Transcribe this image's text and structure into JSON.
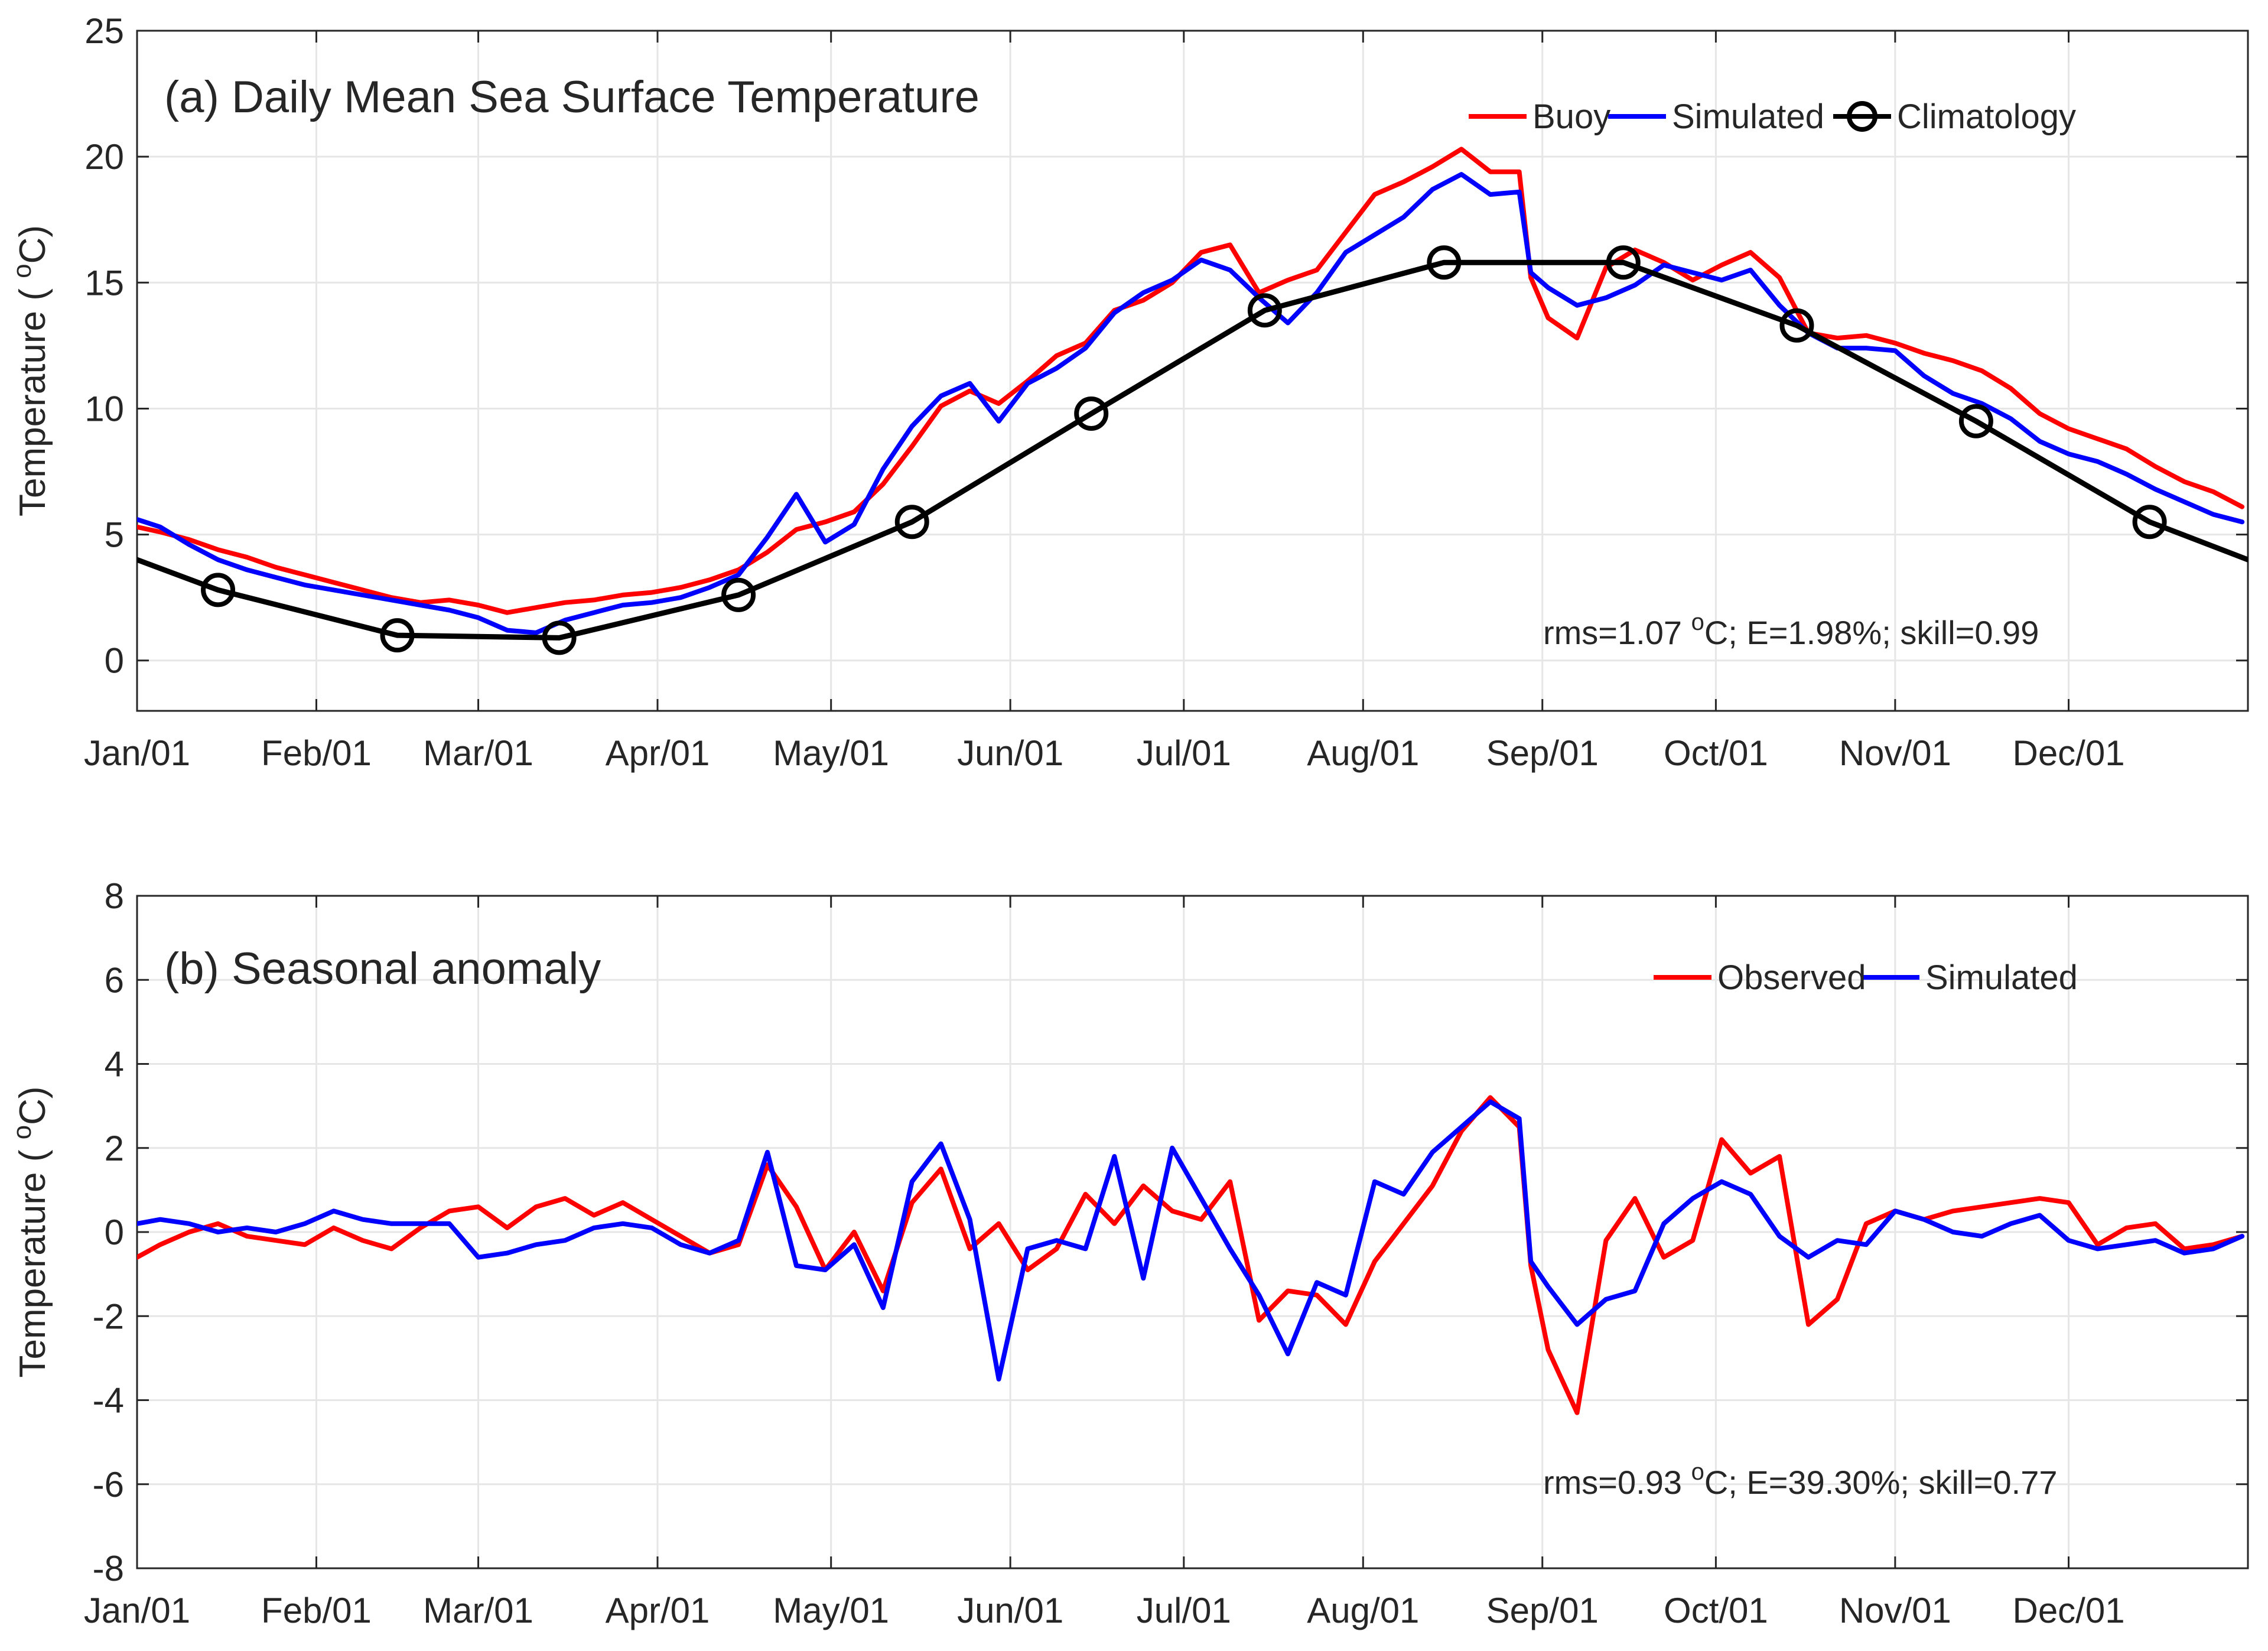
{
  "chart_data": [
    {
      "type": "line",
      "title": "(a) Daily Mean Sea Surface Temperature",
      "ylabel": "Temperature ( °C)",
      "ylabel_parts": {
        "prefix": "Temperature ( ",
        "sup": "o",
        "suffix": "C)"
      },
      "xlabel": "",
      "ylim": [
        -2,
        25
      ],
      "yticks": [
        0,
        5,
        10,
        15,
        20,
        25
      ],
      "xlim": [
        1,
        366
      ],
      "month_ticks": [
        {
          "label": "Jan/01",
          "day": 1
        },
        {
          "label": "Feb/01",
          "day": 32
        },
        {
          "label": "Mar/01",
          "day": 60
        },
        {
          "label": "Apr/01",
          "day": 91
        },
        {
          "label": "May/01",
          "day": 121
        },
        {
          "label": "Jun/01",
          "day": 152
        },
        {
          "label": "Jul/01",
          "day": 182
        },
        {
          "label": "Aug/01",
          "day": 213
        },
        {
          "label": "Sep/01",
          "day": 244
        },
        {
          "label": "Oct/01",
          "day": 274
        },
        {
          "label": "Nov/01",
          "day": 305
        },
        {
          "label": "Dec/01",
          "day": 335
        }
      ],
      "legend_position": "top-right",
      "stats": {
        "prefix": "rms=1.07 ",
        "sup": "o",
        "suffix": "C; E=1.98%; skill=0.99"
      },
      "series": [
        {
          "name": "Buoy",
          "color": "#ff0000",
          "marker": "none",
          "x": [
            1,
            5,
            10,
            15,
            20,
            25,
            30,
            35,
            40,
            45,
            50,
            55,
            60,
            65,
            70,
            75,
            80,
            85,
            90,
            95,
            100,
            105,
            110,
            115,
            120,
            125,
            130,
            135,
            140,
            145,
            150,
            155,
            160,
            165,
            170,
            175,
            180,
            185,
            190,
            195,
            200,
            205,
            210,
            215,
            220,
            225,
            230,
            235,
            240,
            242,
            245,
            250,
            255,
            260,
            265,
            270,
            275,
            280,
            285,
            290,
            295,
            300,
            305,
            310,
            315,
            320,
            325,
            330,
            335,
            340,
            345,
            350,
            355,
            360,
            365
          ],
          "y": [
            5.3,
            5.1,
            4.8,
            4.4,
            4.1,
            3.7,
            3.4,
            3.1,
            2.8,
            2.5,
            2.3,
            2.4,
            2.2,
            1.9,
            2.1,
            2.3,
            2.4,
            2.6,
            2.7,
            2.9,
            3.2,
            3.6,
            4.3,
            5.2,
            5.5,
            5.9,
            7.0,
            8.5,
            10.1,
            10.7,
            10.2,
            11.1,
            12.1,
            12.6,
            13.9,
            14.3,
            15.0,
            16.2,
            16.5,
            14.6,
            15.1,
            15.5,
            17.0,
            18.5,
            19.0,
            19.6,
            20.3,
            19.4,
            19.4,
            15.2,
            13.6,
            12.8,
            15.6,
            16.3,
            15.8,
            15.1,
            15.7,
            16.2,
            15.2,
            13.0,
            12.8,
            12.9,
            12.6,
            12.2,
            11.9,
            11.5,
            10.8,
            9.8,
            9.2,
            8.8,
            8.4,
            7.7,
            7.1,
            6.7,
            6.1
          ]
        },
        {
          "name": "Simulated",
          "color": "#0000ff",
          "marker": "none",
          "x": [
            1,
            5,
            10,
            15,
            20,
            25,
            30,
            35,
            40,
            45,
            50,
            55,
            60,
            65,
            70,
            75,
            80,
            85,
            90,
            95,
            100,
            105,
            110,
            115,
            120,
            125,
            130,
            135,
            140,
            145,
            150,
            155,
            160,
            165,
            170,
            175,
            180,
            185,
            190,
            195,
            200,
            205,
            210,
            215,
            220,
            225,
            230,
            235,
            240,
            242,
            245,
            250,
            255,
            260,
            265,
            270,
            275,
            280,
            285,
            290,
            295,
            300,
            305,
            310,
            315,
            320,
            325,
            330,
            335,
            340,
            345,
            350,
            355,
            360,
            365
          ],
          "y": [
            5.6,
            5.3,
            4.6,
            4.0,
            3.6,
            3.3,
            3.0,
            2.8,
            2.6,
            2.4,
            2.2,
            2.0,
            1.7,
            1.2,
            1.1,
            1.6,
            1.9,
            2.2,
            2.3,
            2.5,
            2.9,
            3.4,
            4.9,
            6.6,
            4.7,
            5.4,
            7.6,
            9.3,
            10.5,
            11.0,
            9.5,
            11.0,
            11.6,
            12.4,
            13.8,
            14.6,
            15.1,
            15.9,
            15.5,
            14.4,
            13.4,
            14.6,
            16.2,
            16.9,
            17.6,
            18.7,
            19.3,
            18.5,
            18.6,
            15.4,
            14.8,
            14.1,
            14.4,
            14.9,
            15.7,
            15.4,
            15.1,
            15.5,
            14.1,
            13.0,
            12.4,
            12.4,
            12.3,
            11.3,
            10.6,
            10.2,
            9.6,
            8.7,
            8.2,
            7.9,
            7.4,
            6.8,
            6.3,
            5.8,
            5.5
          ]
        },
        {
          "name": "Climatology",
          "color": "#000000",
          "marker": "circle",
          "x": [
            1,
            15,
            46,
            74,
            105,
            135,
            166,
            196,
            227,
            258,
            288,
            319,
            349,
            366
          ],
          "y": [
            4.0,
            2.8,
            1.0,
            0.9,
            2.6,
            5.5,
            9.8,
            13.9,
            15.8,
            15.8,
            13.3,
            9.5,
            5.5,
            4.0
          ]
        }
      ]
    },
    {
      "type": "line",
      "title": "(b) Seasonal anomaly",
      "ylabel": "Temperature ( °C)",
      "ylabel_parts": {
        "prefix": "Temperature ( ",
        "sup": "o",
        "suffix": "C)"
      },
      "xlabel": "",
      "ylim": [
        -8,
        8
      ],
      "yticks": [
        -8,
        -6,
        -4,
        -2,
        0,
        2,
        4,
        6,
        8
      ],
      "xlim": [
        1,
        366
      ],
      "month_ticks": [
        {
          "label": "Jan/01",
          "day": 1
        },
        {
          "label": "Feb/01",
          "day": 32
        },
        {
          "label": "Mar/01",
          "day": 60
        },
        {
          "label": "Apr/01",
          "day": 91
        },
        {
          "label": "May/01",
          "day": 121
        },
        {
          "label": "Jun/01",
          "day": 152
        },
        {
          "label": "Jul/01",
          "day": 182
        },
        {
          "label": "Aug/01",
          "day": 213
        },
        {
          "label": "Sep/01",
          "day": 244
        },
        {
          "label": "Oct/01",
          "day": 274
        },
        {
          "label": "Nov/01",
          "day": 305
        },
        {
          "label": "Dec/01",
          "day": 335
        }
      ],
      "legend_position": "top-right",
      "stats": {
        "prefix": "rms=0.93 ",
        "sup": "o",
        "suffix": "C; E=39.30%; skill=0.77"
      },
      "series": [
        {
          "name": "Observed",
          "color": "#ff0000",
          "marker": "none",
          "x": [
            1,
            5,
            10,
            15,
            20,
            25,
            30,
            35,
            40,
            45,
            50,
            55,
            60,
            65,
            70,
            75,
            80,
            85,
            90,
            95,
            100,
            105,
            110,
            115,
            120,
            125,
            130,
            135,
            140,
            145,
            150,
            155,
            160,
            165,
            170,
            175,
            180,
            185,
            190,
            195,
            200,
            205,
            210,
            215,
            220,
            225,
            230,
            235,
            240,
            242,
            245,
            250,
            255,
            260,
            265,
            270,
            275,
            280,
            285,
            290,
            295,
            300,
            305,
            310,
            315,
            320,
            325,
            330,
            335,
            340,
            345,
            350,
            355,
            360,
            365
          ],
          "y": [
            -0.6,
            -0.3,
            0.0,
            0.2,
            -0.1,
            -0.2,
            -0.3,
            0.1,
            -0.2,
            -0.4,
            0.1,
            0.5,
            0.6,
            0.1,
            0.6,
            0.8,
            0.4,
            0.7,
            0.3,
            -0.1,
            -0.5,
            -0.3,
            1.6,
            0.6,
            -0.9,
            0.0,
            -1.4,
            0.7,
            1.5,
            -0.4,
            0.2,
            -0.9,
            -0.4,
            0.9,
            0.2,
            1.1,
            0.5,
            0.3,
            1.2,
            -2.1,
            -1.4,
            -1.5,
            -2.2,
            -0.7,
            0.2,
            1.1,
            2.4,
            3.2,
            2.5,
            -0.8,
            -2.8,
            -4.3,
            -0.2,
            0.8,
            -0.6,
            -0.2,
            2.2,
            1.4,
            1.8,
            -2.2,
            -1.6,
            0.2,
            0.5,
            0.3,
            0.5,
            0.6,
            0.7,
            0.8,
            0.7,
            -0.3,
            0.1,
            0.2,
            -0.4,
            -0.3,
            -0.1
          ]
        },
        {
          "name": "Simulated",
          "color": "#0000ff",
          "marker": "none",
          "x": [
            1,
            5,
            10,
            15,
            20,
            25,
            30,
            35,
            40,
            45,
            50,
            55,
            60,
            65,
            70,
            75,
            80,
            85,
            90,
            95,
            100,
            105,
            110,
            115,
            120,
            125,
            130,
            135,
            140,
            145,
            150,
            155,
            160,
            165,
            170,
            175,
            180,
            185,
            190,
            195,
            200,
            205,
            210,
            215,
            220,
            225,
            230,
            235,
            240,
            242,
            245,
            250,
            255,
            260,
            265,
            270,
            275,
            280,
            285,
            290,
            295,
            300,
            305,
            310,
            315,
            320,
            325,
            330,
            335,
            340,
            345,
            350,
            355,
            360,
            365
          ],
          "y": [
            0.2,
            0.3,
            0.2,
            0.0,
            0.1,
            0.0,
            0.2,
            0.5,
            0.3,
            0.2,
            0.2,
            0.2,
            -0.6,
            -0.5,
            -0.3,
            -0.2,
            0.1,
            0.2,
            0.1,
            -0.3,
            -0.5,
            -0.2,
            1.9,
            -0.8,
            -0.9,
            -0.3,
            -1.8,
            1.2,
            2.1,
            0.3,
            -3.5,
            -0.4,
            -0.2,
            -0.4,
            1.8,
            -1.1,
            2.0,
            0.8,
            -0.4,
            -1.5,
            -2.9,
            -1.2,
            -1.5,
            1.2,
            0.9,
            1.9,
            2.5,
            3.1,
            2.7,
            -0.7,
            -1.3,
            -2.2,
            -1.6,
            -1.4,
            0.2,
            0.8,
            1.2,
            0.9,
            -0.1,
            -0.6,
            -0.2,
            -0.3,
            0.5,
            0.3,
            0.0,
            -0.1,
            0.2,
            0.4,
            -0.2,
            -0.4,
            -0.3,
            -0.2,
            -0.5,
            -0.4,
            -0.1
          ]
        }
      ]
    }
  ]
}
